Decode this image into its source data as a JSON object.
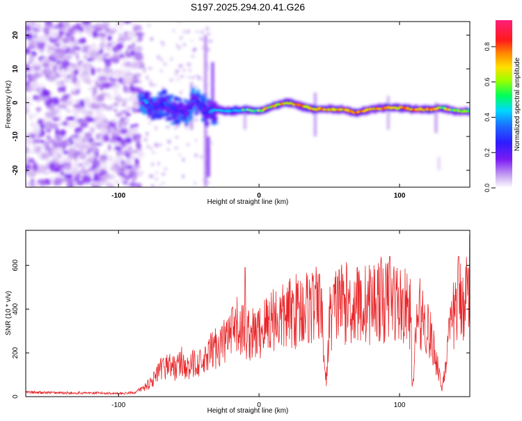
{
  "title": "S197.2025.294.20.41.G26",
  "colors": {
    "snr_line": "#e8272a",
    "axis": "#000000",
    "spectrum_ramp": [
      "#ffffff",
      "#e9d8f7",
      "#c9a8f1",
      "#a466f0",
      "#7b1bf4",
      "#2c1cff",
      "#1d6cff",
      "#00d8ff",
      "#00ff5a",
      "#c8ff00",
      "#ffd000",
      "#ff6a00",
      "#ff1a1a",
      "#ff1f7a"
    ]
  },
  "chart_data": [
    {
      "type": "heatmap",
      "name": "spectrogram",
      "xlabel": "Height of straight line (km)",
      "ylabel": "Frequency (Hz)",
      "xlim": [
        -166,
        150
      ],
      "ylim": [
        -25,
        24
      ],
      "xticks": [
        -100,
        0,
        100
      ],
      "yticks": [
        -20,
        -10,
        0,
        10,
        20
      ],
      "grid": false,
      "colorbar": {
        "label": "Normalized spectral amplitude",
        "range": [
          0,
          0.95
        ],
        "ticks": [
          0.0,
          0.2,
          0.4,
          0.6,
          0.8
        ]
      },
      "dominant_track": {
        "x": [
          -82,
          -75,
          -68,
          -60,
          -52,
          -45,
          -38,
          -30,
          -20,
          -10,
          0,
          10,
          20,
          30,
          40,
          50,
          60,
          70,
          80,
          90,
          100,
          110,
          120,
          130,
          140,
          150
        ],
        "freq": [
          1,
          -2,
          0,
          -2,
          -3,
          1,
          -3,
          -2,
          -2.5,
          -2,
          -2.5,
          -1,
          0,
          -1,
          -2,
          -2,
          -2,
          -3,
          -2,
          -1.5,
          -1.5,
          -2,
          -2,
          -1.5,
          -2.5,
          -2.5
        ],
        "amplitude": [
          0.45,
          0.35,
          0.4,
          0.35,
          0.3,
          0.35,
          0.3,
          0.55,
          0.5,
          0.6,
          0.7,
          0.8,
          0.85,
          0.9,
          0.9,
          0.9,
          0.88,
          0.85,
          0.85,
          0.9,
          0.9,
          0.92,
          0.9,
          0.75,
          0.7,
          0.65
        ]
      },
      "noise_region": {
        "x_from": -166,
        "x_to": -84,
        "amplitude_range": [
          0.0,
          0.2
        ]
      }
    },
    {
      "type": "line",
      "name": "snr",
      "xlabel": "Height of straight line (km)",
      "ylabel": "SNR (10 * v/v)",
      "xlim": [
        -166,
        150
      ],
      "ylim": [
        0,
        760
      ],
      "xticks": [
        -100,
        0,
        100
      ],
      "yticks": [
        0,
        200,
        400,
        600
      ],
      "grid": false,
      "series": [
        {
          "name": "SNR",
          "x": [
            -166,
            -150,
            -130,
            -110,
            -95,
            -88,
            -82,
            -75,
            -70,
            -65,
            -60,
            -55,
            -50,
            -45,
            -40,
            -35,
            -30,
            -25,
            -20,
            -15,
            -10,
            -5,
            0,
            5,
            10,
            15,
            20,
            25,
            30,
            35,
            40,
            45,
            47,
            48,
            50,
            55,
            60,
            65,
            70,
            75,
            80,
            85,
            90,
            95,
            100,
            105,
            108,
            109,
            110,
            112,
            115,
            120,
            125,
            128,
            130,
            132,
            135,
            140,
            145,
            150
          ],
          "y": [
            20,
            18,
            17,
            16,
            15,
            20,
            40,
            80,
            120,
            150,
            130,
            160,
            120,
            170,
            140,
            200,
            230,
            250,
            280,
            320,
            300,
            280,
            290,
            330,
            370,
            350,
            370,
            390,
            400,
            410,
            420,
            350,
            100,
            70,
            350,
            420,
            430,
            420,
            410,
            420,
            430,
            450,
            430,
            450,
            420,
            400,
            380,
            60,
            60,
            350,
            380,
            320,
            200,
            120,
            30,
            120,
            250,
            420,
            450,
            500
          ]
        }
      ],
      "spikes": [
        {
          "x": -10,
          "y": 590
        },
        {
          "x": 43,
          "y": 560
        },
        {
          "x": 57,
          "y": 580
        },
        {
          "x": 70,
          "y": 590
        },
        {
          "x": 93,
          "y": 640
        },
        {
          "x": 142,
          "y": 640
        },
        {
          "x": 150,
          "y": 740
        }
      ]
    }
  ]
}
